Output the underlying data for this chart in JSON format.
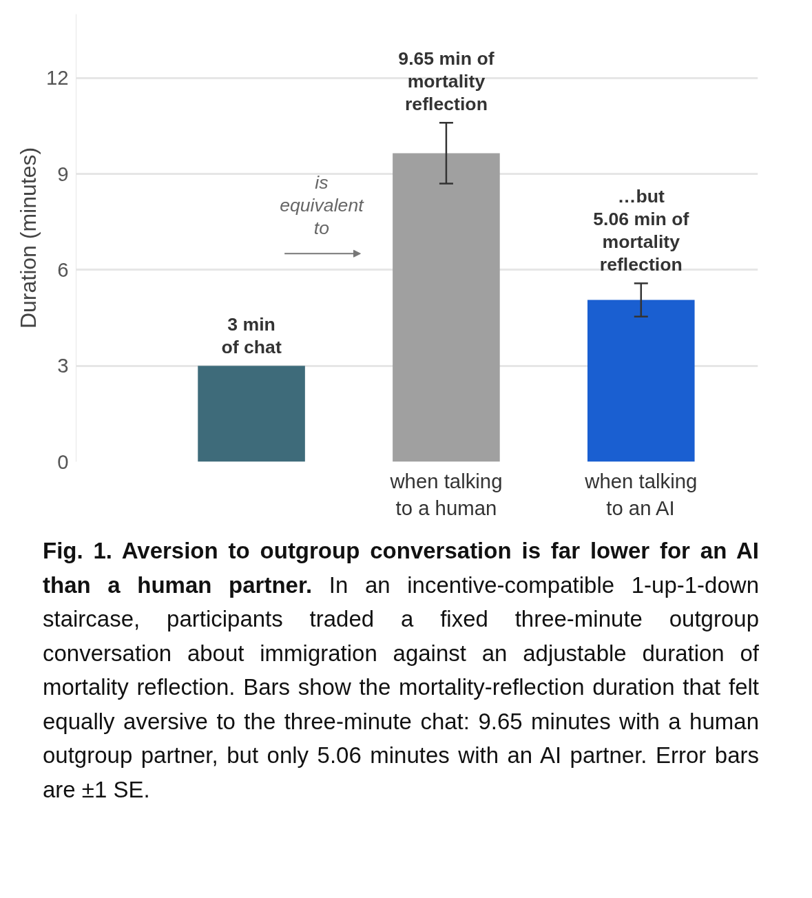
{
  "chart_data": {
    "type": "bar",
    "ylabel": "Duration (minutes)",
    "categories": [
      null,
      "when talking\nto a human",
      "when talking\nto an AI"
    ],
    "values": [
      3,
      9.65,
      5.06
    ],
    "colors": [
      "#3e6b7a",
      "#a0a0a0",
      "#1a5fd1"
    ],
    "errors": [
      null,
      0.95,
      0.52
    ],
    "value_labels": [
      "3 min\nof chat",
      "9.65 min of\nmortality\nreflection",
      "…but\n5.06 min of\nmortality\nreflection"
    ],
    "ylim": [
      0,
      14
    ],
    "yticks": [
      0,
      3,
      6,
      9,
      12
    ],
    "grid": "y",
    "annotations": [
      "is\nequivalent\nto",
      "Fig. 1. Aversion to outgroup conversation is far lower for an AI than a human partner.",
      "In an incentive-compatible 1-up-1-down staircase, participants traded a fixed three-minute outgroup conversation about immigration against an adjustable duration of mortality reflection. Bars show the mortality-reflection duration that felt equally aversive to the three-minute chat: 9.65 minutes with a human outgroup partner, but only 5.06 minutes with an AI partner. Error bars are ±1 SE."
    ]
  }
}
